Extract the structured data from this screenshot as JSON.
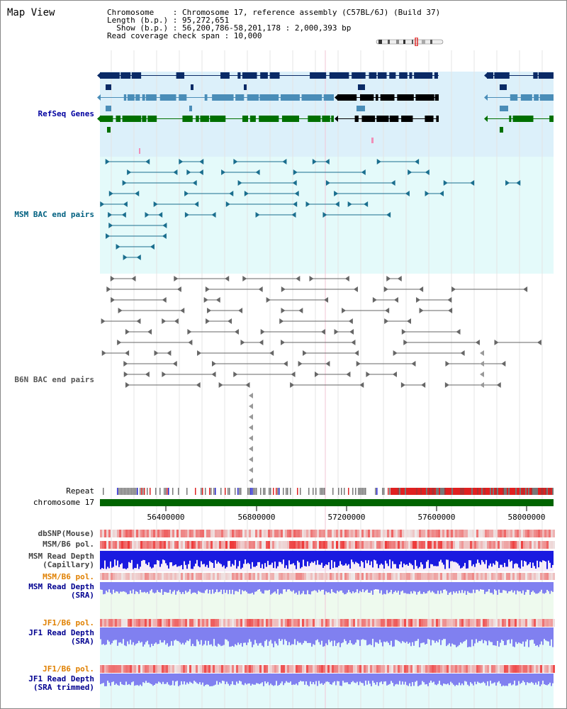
{
  "title": "Map View",
  "info": {
    "line1": "Chromosome    : Chromosome 17, reference assembly (C57BL/6J) (Build 37)",
    "line2": "Length (b.p.) : 95,272,651",
    "line3": "  Show (b.p.) : 56,200,786-58,201,178 : 2,000,393 bp",
    "line4": "Read coverage check span : 10,000"
  },
  "tracks": {
    "refseq": "RefSeq Genes",
    "msm_bac": "MSM BAC end pairs",
    "b6n_bac": "B6N BAC end pairs",
    "repeat": "Repeat",
    "chromosome": "chromosome 17",
    "dbsnp": "dbSNP(Mouse)",
    "msm_b6_pol": "MSM/B6 pol.",
    "msm_read_cap_1": "MSM Read Depth",
    "msm_read_cap_2": "(Capillary)",
    "msm_b6_pol_2": "MSM/B6 pol.",
    "msm_read_sra_1": "MSM Read Depth",
    "msm_read_sra_2": "(SRA)",
    "jf1_b6_pol": "JF1/B6 pol.",
    "jf1_read_sra_1": "JF1 Read Depth",
    "jf1_read_sra_2": "(SRA)",
    "jf1_b6_pol_2": "JF1/B6 pol.",
    "jf1_trim_1": "JF1 Read Depth",
    "jf1_trim_2": "(SRA trimmed)"
  },
  "axis": {
    "ticks": [
      "56400000",
      "56800000",
      "57200000",
      "57600000",
      "58000000"
    ]
  },
  "colors": {
    "refseq_bg": "#dcf0fa",
    "bac_bg": "#e4fafa",
    "dark_gene": "#0a2a66",
    "mid_gene": "#4a8db8",
    "green_gene": "#007000",
    "chromosome_bar": "#006400",
    "msm_bac": "#1a6e8e",
    "b6n_bac": "#666666",
    "depth_blue": "#1a1ae0",
    "depth_light": "#8080f0",
    "pol_red": "#e02020",
    "cap_bg": "#f6ecf8",
    "sra_bg": "#eefaee",
    "jf1_bg": "#e4fafa"
  }
}
